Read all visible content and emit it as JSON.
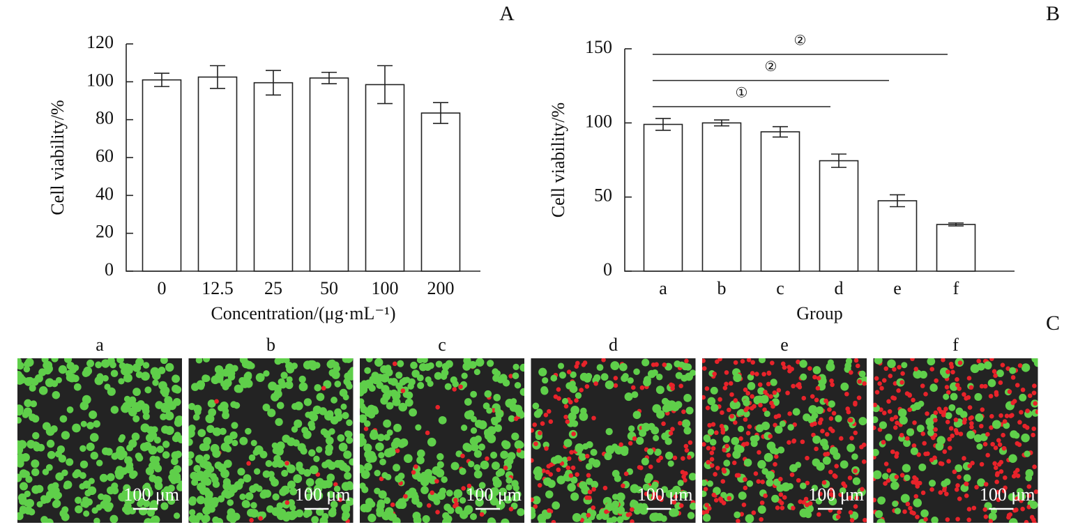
{
  "chart_data": [
    {
      "type": "bar",
      "panel_label": "A",
      "categories": [
        "0",
        "12.5",
        "25",
        "50",
        "100",
        "200"
      ],
      "values": [
        101,
        102.5,
        99.5,
        102,
        98.5,
        83.5
      ],
      "errors": [
        3.5,
        6,
        6.5,
        3,
        10,
        5.5
      ],
      "color": "#ffffff",
      "ylim": [
        0,
        120
      ],
      "yticks": [
        0,
        20,
        40,
        60,
        80,
        100,
        120
      ],
      "xlabel": "Concentration/(μg·mL⁻¹)",
      "ylabel": "Cell viability/%"
    },
    {
      "type": "bar",
      "panel_label": "B",
      "categories": [
        "a",
        "b",
        "c",
        "d",
        "e",
        "f"
      ],
      "values": [
        99,
        100,
        94,
        74.5,
        47.5,
        31.5
      ],
      "errors": [
        4,
        2,
        3.5,
        4.5,
        4,
        1
      ],
      "color": "#ffffff",
      "ylim": [
        0,
        150
      ],
      "yticks": [
        0,
        50,
        100,
        150
      ],
      "xlabel": "Group",
      "ylabel": "Cell viability/%",
      "annotations": [
        {
          "text": "②",
          "from": "a",
          "to": "f"
        },
        {
          "text": "②",
          "from": "a",
          "to": "e"
        },
        {
          "text": "①",
          "from": "a",
          "to": "d"
        }
      ]
    }
  ],
  "images": {
    "panel_label": "C",
    "panels": [
      {
        "label": "a",
        "scale": "100 μm"
      },
      {
        "label": "b",
        "scale": "100 μm"
      },
      {
        "label": "c",
        "scale": "100 μm"
      },
      {
        "label": "d",
        "scale": "100 μm"
      },
      {
        "label": "e",
        "scale": "100 μm"
      },
      {
        "label": "f",
        "scale": "100 μm"
      }
    ]
  }
}
